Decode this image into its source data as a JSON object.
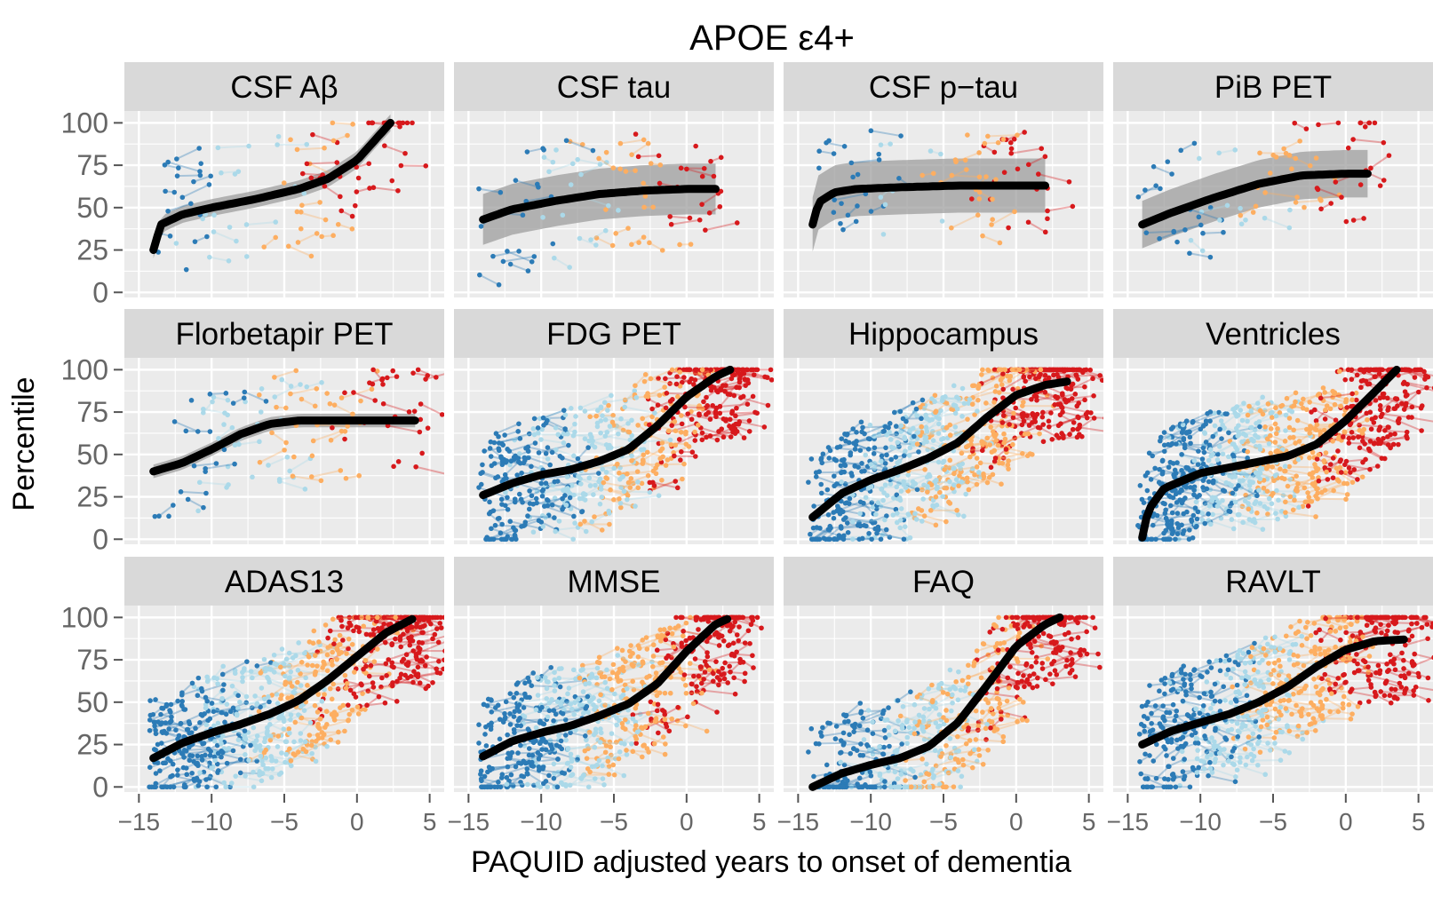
{
  "chart_data": {
    "type": "scatter",
    "title": "APOE ε4+",
    "xlabel": "PAQUID adjusted years to onset of dementia",
    "ylabel": "Percentile",
    "xlim": [
      -16,
      6
    ],
    "ylim": [
      -3,
      107
    ],
    "x_ticks": [
      "−15",
      "−10",
      "−5",
      "0",
      "5"
    ],
    "x_tick_values": [
      -15,
      -10,
      -5,
      0,
      5
    ],
    "y_ticks": [
      "0",
      "25",
      "50",
      "75",
      "100"
    ],
    "y_tick_values": [
      0,
      25,
      50,
      75,
      100
    ],
    "grid": true,
    "legend": "none",
    "colors": {
      "panel_bg": "#ebebeb",
      "strip_bg": "#d9d9d9",
      "grid": "#ffffff",
      "fit": "#000000",
      "ribbon": "#999999",
      "points": [
        "#2c7bb6",
        "#abd9e9",
        "#fdae61",
        "#d7191c"
      ]
    },
    "panels": [
      {
        "name": "CSF Aβ",
        "density": 70,
        "fit": [
          [
            -14,
            25
          ],
          [
            -13.5,
            40
          ],
          [
            -12,
            46
          ],
          [
            -10,
            50
          ],
          [
            -7,
            55
          ],
          [
            -4,
            61
          ],
          [
            -2,
            67
          ],
          [
            0,
            78
          ],
          [
            2.3,
            100
          ]
        ],
        "ribbon_width": 5
      },
      {
        "name": "CSF tau",
        "density": 60,
        "fit": [
          [
            -14,
            43
          ],
          [
            -12,
            49
          ],
          [
            -9,
            54
          ],
          [
            -6,
            58
          ],
          [
            -3,
            60
          ],
          [
            0,
            61
          ],
          [
            2,
            61
          ]
        ],
        "ribbon_width": 15
      },
      {
        "name": "CSF p−tau",
        "density": 60,
        "fit": [
          [
            -14,
            40
          ],
          [
            -13.6,
            53
          ],
          [
            -12.5,
            59
          ],
          [
            -11,
            61
          ],
          [
            -8,
            62
          ],
          [
            -4,
            63
          ],
          [
            0,
            63
          ],
          [
            2,
            63
          ]
        ],
        "ribbon_width": 16
      },
      {
        "name": "PiB PET",
        "density": 60,
        "fit": [
          [
            -14,
            40
          ],
          [
            -12,
            47
          ],
          [
            -9,
            56
          ],
          [
            -6,
            64
          ],
          [
            -3,
            69
          ],
          [
            0,
            70
          ],
          [
            1.5,
            70
          ]
        ],
        "ribbon_width": 14
      },
      {
        "name": "Florbetapir PET",
        "density": 90,
        "fit": [
          [
            -14,
            40
          ],
          [
            -12,
            45
          ],
          [
            -10,
            53
          ],
          [
            -8,
            62
          ],
          [
            -6,
            68
          ],
          [
            -4,
            70
          ],
          [
            -1,
            70
          ],
          [
            2,
            70
          ],
          [
            4,
            70
          ]
        ],
        "ribbon_width": 4
      },
      {
        "name": "FDG PET",
        "density": 420,
        "fit": [
          [
            -14,
            26
          ],
          [
            -12,
            33
          ],
          [
            -10,
            38
          ],
          [
            -8,
            41
          ],
          [
            -6,
            46
          ],
          [
            -4,
            53
          ],
          [
            -2,
            67
          ],
          [
            0,
            84
          ],
          [
            2,
            96
          ],
          [
            3,
            100
          ]
        ],
        "ribbon_width": 2
      },
      {
        "name": "Hippocampus",
        "density": 520,
        "fit": [
          [
            -14,
            13
          ],
          [
            -12,
            27
          ],
          [
            -10,
            35
          ],
          [
            -8,
            41
          ],
          [
            -6,
            48
          ],
          [
            -4,
            57
          ],
          [
            -2,
            72
          ],
          [
            0,
            85
          ],
          [
            2,
            91
          ],
          [
            3.5,
            93
          ]
        ],
        "ribbon_width": 2
      },
      {
        "name": "Ventricles",
        "density": 560,
        "fit": [
          [
            -14,
            1
          ],
          [
            -13.6,
            17
          ],
          [
            -12.5,
            30
          ],
          [
            -10,
            39
          ],
          [
            -7,
            44
          ],
          [
            -4,
            49
          ],
          [
            -2,
            56
          ],
          [
            0,
            70
          ],
          [
            2,
            87
          ],
          [
            3.5,
            100
          ]
        ],
        "ribbon_width": 2
      },
      {
        "name": "ADAS13",
        "density": 520,
        "fit": [
          [
            -14,
            17
          ],
          [
            -12,
            26
          ],
          [
            -10,
            32
          ],
          [
            -8,
            37
          ],
          [
            -6,
            43
          ],
          [
            -4,
            51
          ],
          [
            -2,
            63
          ],
          [
            0,
            77
          ],
          [
            2,
            91
          ],
          [
            3.8,
            99
          ]
        ],
        "ribbon_width": 1
      },
      {
        "name": "MMSE",
        "density": 480,
        "fit": [
          [
            -14,
            18
          ],
          [
            -12,
            27
          ],
          [
            -10,
            32
          ],
          [
            -8,
            36
          ],
          [
            -6,
            42
          ],
          [
            -4,
            49
          ],
          [
            -2,
            61
          ],
          [
            0,
            80
          ],
          [
            2,
            96
          ],
          [
            2.8,
            99
          ]
        ],
        "ribbon_width": 1
      },
      {
        "name": "FAQ",
        "density": 380,
        "fit": [
          [
            -14,
            0
          ],
          [
            -12,
            8
          ],
          [
            -10,
            13
          ],
          [
            -8,
            17
          ],
          [
            -6,
            24
          ],
          [
            -4,
            38
          ],
          [
            -2,
            60
          ],
          [
            0,
            83
          ],
          [
            2,
            96
          ],
          [
            3,
            100
          ]
        ],
        "ribbon_width": 1
      },
      {
        "name": "RAVLT",
        "density": 480,
        "fit": [
          [
            -14,
            25
          ],
          [
            -12,
            33
          ],
          [
            -10,
            38
          ],
          [
            -8,
            43
          ],
          [
            -6,
            50
          ],
          [
            -4,
            59
          ],
          [
            -2,
            71
          ],
          [
            0,
            81
          ],
          [
            2,
            86
          ],
          [
            4,
            87
          ]
        ],
        "ribbon_width": 1
      }
    ]
  }
}
